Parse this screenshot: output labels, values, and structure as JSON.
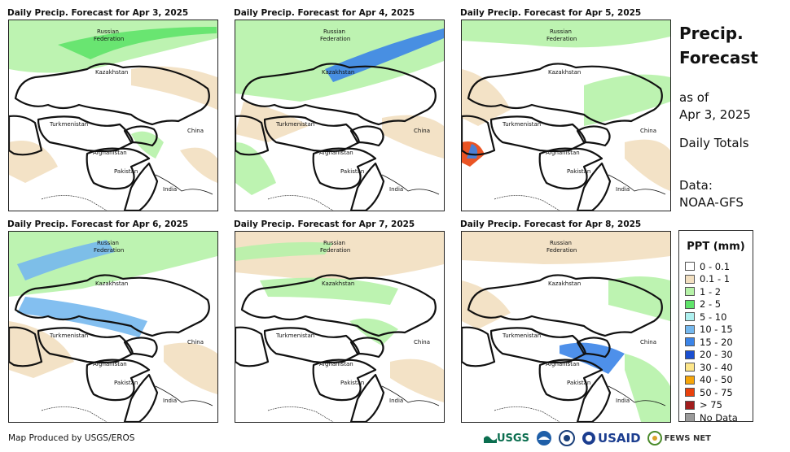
{
  "panels": [
    {
      "title": "Daily Precip. Forecast for Apr 3, 2025"
    },
    {
      "title": "Daily Precip. Forecast for Apr 4, 2025"
    },
    {
      "title": "Daily Precip. Forecast for Apr 5, 2025"
    },
    {
      "title": "Daily Precip. Forecast for Apr 6, 2025"
    },
    {
      "title": "Daily Precip. Forecast for Apr 7, 2025"
    },
    {
      "title": "Daily Precip. Forecast for Apr 8, 2025"
    }
  ],
  "map_labels": {
    "russia_line1": "Russian",
    "russia_line2": "Federation",
    "kazakhstan": "Kazakhstan",
    "turkmenistan": "Turkmenistan",
    "china": "China",
    "afghanistan": "Afghanistan",
    "pakistan": "Pakistan",
    "india": "India"
  },
  "sidebar": {
    "title_line1": "Precip.",
    "title_line2": "Forecast",
    "asof_line1": "as of",
    "asof_line2": "Apr 3, 2025",
    "totals": "Daily Totals",
    "data_line1": "Data:",
    "data_line2": "NOAA-GFS"
  },
  "legend": {
    "title": "PPT (mm)",
    "items": [
      {
        "label": "0 - 0.1",
        "color": "#ffffff"
      },
      {
        "label": "0.1 - 1",
        "color": "#f2dfc0"
      },
      {
        "label": "1 - 2",
        "color": "#b6f2a8"
      },
      {
        "label": "2 - 5",
        "color": "#5fe36a"
      },
      {
        "label": "5 - 10",
        "color": "#aef0ef"
      },
      {
        "label": "10 - 15",
        "color": "#75b8ee"
      },
      {
        "label": "15 - 20",
        "color": "#3b84e8"
      },
      {
        "label": "20 - 30",
        "color": "#1a4fd1"
      },
      {
        "label": "30 - 40",
        "color": "#fde68a"
      },
      {
        "label": "40 - 50",
        "color": "#f6a50a"
      },
      {
        "label": "50 - 75",
        "color": "#e8410c"
      },
      {
        "label": "> 75",
        "color": "#a11d1d"
      },
      {
        "label": "No Data",
        "color": "#9a9a9a"
      }
    ]
  },
  "footer": {
    "credit": "Map Produced by USGS/EROS",
    "logos": {
      "usgs": "USGS",
      "usaid": "USAID",
      "fews": "FEWS NET"
    }
  }
}
